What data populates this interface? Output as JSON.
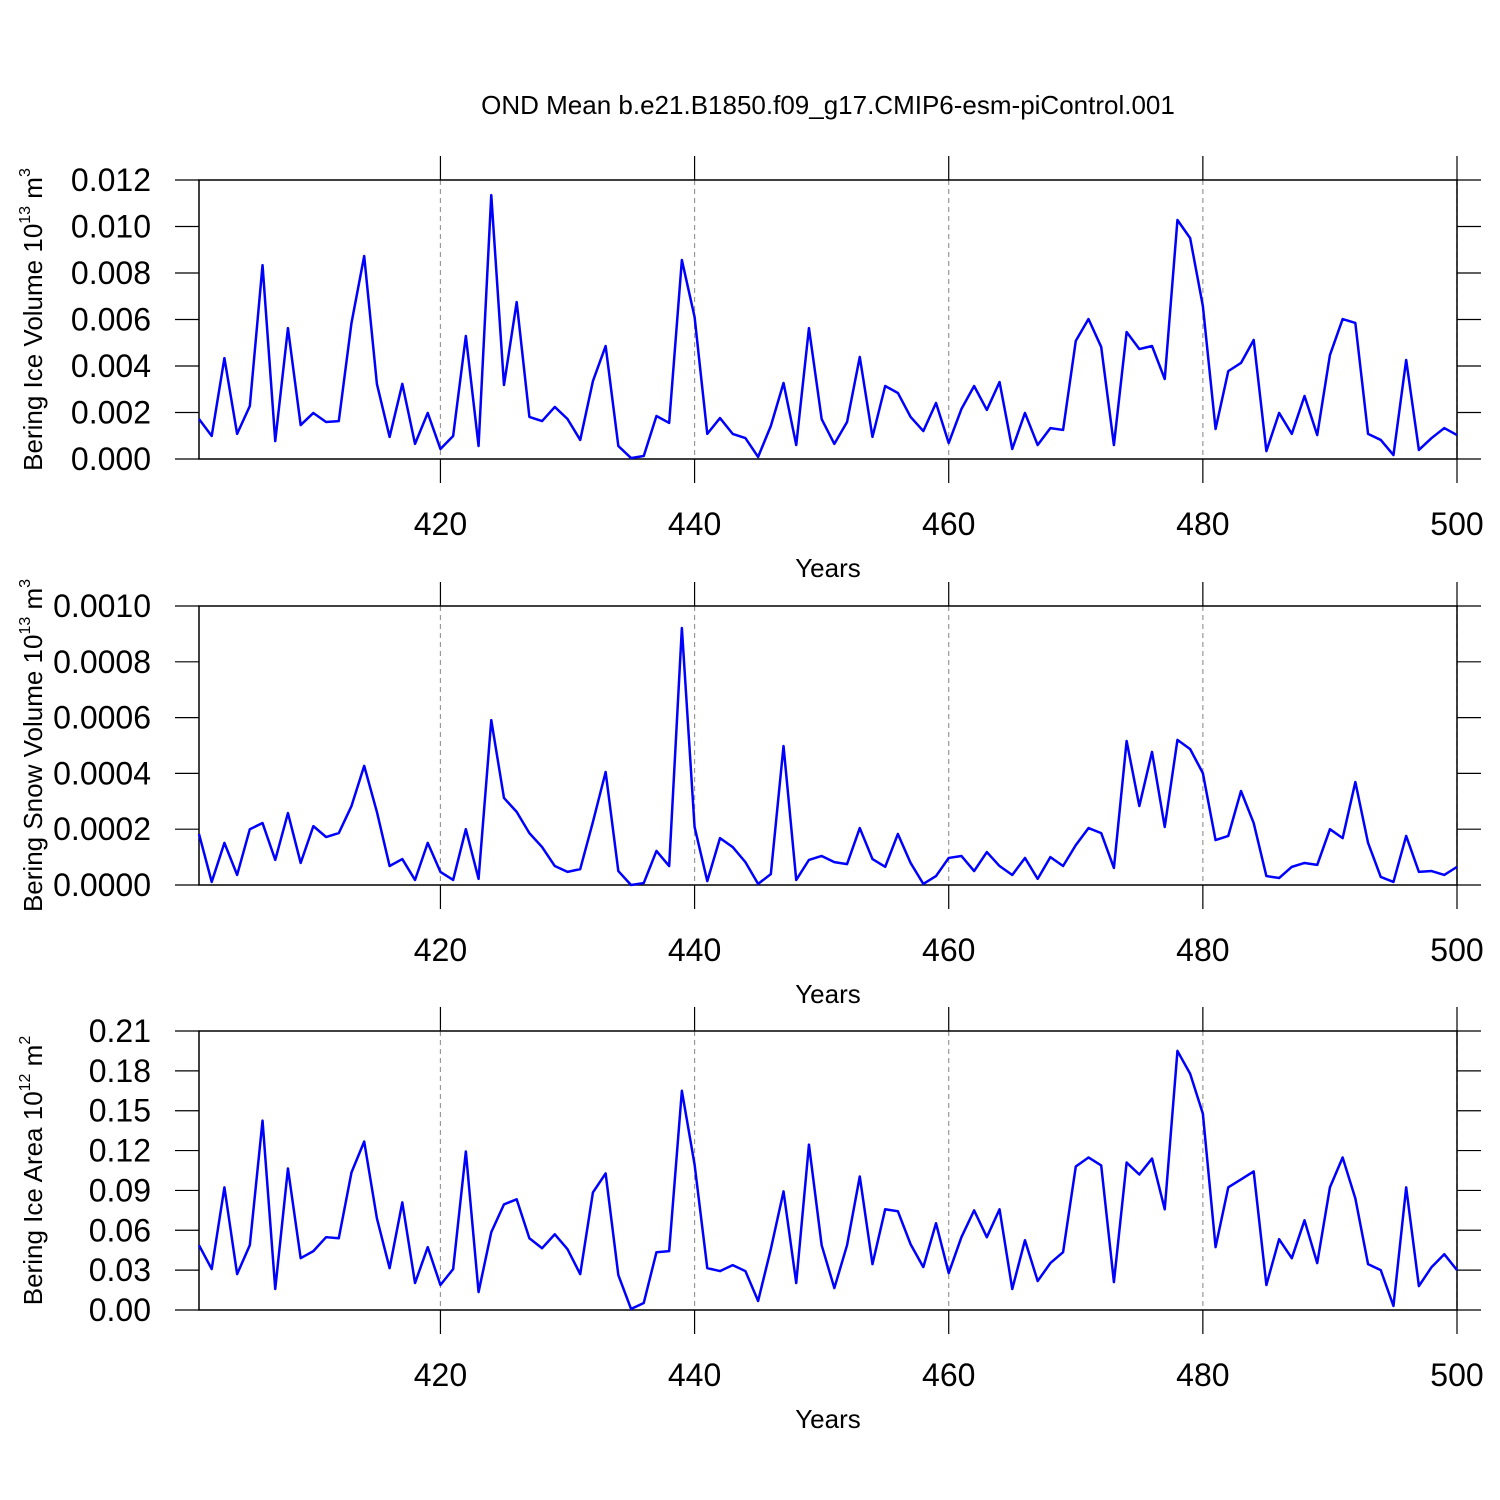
{
  "chart_data": [
    {
      "type": "line",
      "title": "OND Mean b.e21.B1850.f09_g17.CMIP6-esm-piControl.001",
      "ylabel": {
        "text": "Bering Ice Volume 10",
        "exp": "13",
        "unit": " m",
        "unit_exp": "3"
      },
      "xlabel": "Years",
      "x": [
        401,
        402,
        403,
        404,
        405,
        406,
        407,
        408,
        409,
        410,
        411,
        412,
        413,
        414,
        415,
        416,
        417,
        418,
        419,
        420,
        421,
        422,
        423,
        424,
        425,
        426,
        427,
        428,
        429,
        430,
        431,
        432,
        433,
        434,
        435,
        436,
        437,
        438,
        439,
        440,
        441,
        442,
        443,
        444,
        445,
        446,
        447,
        448,
        449,
        450,
        451,
        452,
        453,
        454,
        455,
        456,
        457,
        458,
        459,
        460,
        461,
        462,
        463,
        464,
        465,
        466,
        467,
        468,
        469,
        470,
        471,
        472,
        473,
        474,
        475,
        476,
        477,
        478,
        479,
        480,
        481,
        482,
        483,
        484,
        485,
        486,
        487,
        488,
        489,
        490,
        491,
        492,
        493,
        494,
        495,
        496,
        497,
        498,
        499,
        500
      ],
      "series": [
        {
          "color": "#0000ff",
          "values": [
            0.00172,
            0.00099,
            0.00434,
            0.00108,
            0.00228,
            0.00834,
            0.00077,
            0.00563,
            0.00146,
            0.00198,
            0.00159,
            0.00163,
            0.00585,
            0.00873,
            0.00323,
            0.00095,
            0.00323,
            0.00065,
            0.00198,
            0.00043,
            0.00099,
            0.00529,
            0.00056,
            0.01135,
            0.00318,
            0.00675,
            0.00181,
            0.00163,
            0.00224,
            0.00172,
            0.00082,
            0.00335,
            0.00486,
            0.00056,
            4e-05,
            0.00013,
            0.00185,
            0.00155,
            0.00856,
            0.00611,
            0.00108,
            0.00176,
            0.00108,
            0.0009,
            9e-05,
            0.00142,
            0.00327,
            0.0006,
            0.00563,
            0.00172,
            0.00065,
            0.00159,
            0.00439,
            0.00095,
            0.00314,
            0.00284,
            0.00181,
            0.0012,
            0.00241,
            0.00069,
            0.00215,
            0.00314,
            0.00211,
            0.00331,
            0.00043,
            0.00198,
            0.0006,
            0.00133,
            0.00125,
            0.00508,
            0.00602,
            0.00482,
            0.0006,
            0.00546,
            0.00473,
            0.00486,
            0.00344,
            0.01028,
            0.0095,
            0.00658,
            0.00129,
            0.00378,
            0.00413,
            0.00512,
            0.00034,
            0.00198,
            0.00108,
            0.00271,
            0.00103,
            0.00447,
            0.00602,
            0.00585,
            0.00108,
            0.00082,
            0.00017,
            0.00426,
            0.00039,
            0.0009,
            0.00133,
            0.00103
          ]
        }
      ],
      "xlim": [
        401,
        500
      ],
      "xticks": [
        420,
        440,
        460,
        480,
        500
      ],
      "ylim": [
        0,
        0.012
      ],
      "yticks": [
        {
          "value": 0,
          "label": "0.000"
        },
        {
          "value": 0.002,
          "label": "0.002"
        },
        {
          "value": 0.004,
          "label": "0.004"
        },
        {
          "value": 0.006,
          "label": "0.006"
        },
        {
          "value": 0.008,
          "label": "0.008"
        },
        {
          "value": 0.01,
          "label": "0.010"
        },
        {
          "value": 0.012,
          "label": "0.012"
        }
      ],
      "grid": "x"
    },
    {
      "type": "line",
      "ylabel": {
        "text": "Bering Snow Volume 10",
        "exp": "13",
        "unit": " m",
        "unit_exp": "3"
      },
      "xlabel": "Years",
      "x": [
        401,
        402,
        403,
        404,
        405,
        406,
        407,
        408,
        409,
        410,
        411,
        412,
        413,
        414,
        415,
        416,
        417,
        418,
        419,
        420,
        421,
        422,
        423,
        424,
        425,
        426,
        427,
        428,
        429,
        430,
        431,
        432,
        433,
        434,
        435,
        436,
        437,
        438,
        439,
        440,
        441,
        442,
        443,
        444,
        445,
        446,
        447,
        448,
        449,
        450,
        451,
        452,
        453,
        454,
        455,
        456,
        457,
        458,
        459,
        460,
        461,
        462,
        463,
        464,
        465,
        466,
        467,
        468,
        469,
        470,
        471,
        472,
        473,
        474,
        475,
        476,
        477,
        478,
        479,
        480,
        481,
        482,
        483,
        484,
        485,
        486,
        487,
        488,
        489,
        490,
        491,
        492,
        493,
        494,
        495,
        496,
        497,
        498,
        499,
        500
      ],
      "series": [
        {
          "color": "#0000ff",
          "values": [
            0.000183,
            1.1e-05,
            0.000151,
            3.6e-05,
            0.0002,
            0.000222,
            9e-05,
            0.000258,
            7.9e-05,
            0.000211,
            0.000172,
            0.000186,
            0.000283,
            0.000427,
            0.000262,
            6.8e-05,
            9.3e-05,
            1.8e-05,
            0.000151,
            4.7e-05,
            1.8e-05,
            0.0002,
            2.2e-05,
            0.000591,
            0.000312,
            0.000262,
            0.000186,
            0.000136,
            6.8e-05,
            4.7e-05,
            5.7e-05,
            0.000226,
            0.000405,
            5e-05,
            0,
            7e-06,
            0.000122,
            6.8e-05,
            0.000921,
            0.000208,
            1.4e-05,
            0.000168,
            0.000136,
            8.2e-05,
            4e-06,
            3.9e-05,
            0.000498,
            1.8e-05,
            9e-05,
            0.000104,
            8.2e-05,
            7.5e-05,
            0.000204,
            9.3e-05,
            6.5e-05,
            0.000183,
            7.9e-05,
            4e-06,
            3.2e-05,
            9.7e-05,
            0.000104,
            5e-05,
            0.000118,
            6.8e-05,
            3.6e-05,
            9.7e-05,
            2.2e-05,
            0.0001,
            6.8e-05,
            0.000143,
            0.000204,
            0.000186,
            6.1e-05,
            0.000516,
            0.000283,
            0.000477,
            0.000208,
            0.00052,
            0.000487,
            0.000401,
            0.000161,
            0.000176,
            0.000337,
            0.000222,
            3.2e-05,
            2.5e-05,
            6.5e-05,
            7.9e-05,
            7.2e-05,
            0.0002,
            0.000168,
            0.000369,
            0.000151,
            2.9e-05,
            1.1e-05,
            0.000176,
            4.7e-05,
            5e-05,
            3.6e-05,
            6.5e-05
          ]
        }
      ],
      "xlim": [
        401,
        500
      ],
      "xticks": [
        420,
        440,
        460,
        480,
        500
      ],
      "ylim": [
        0,
        0.001
      ],
      "yticks": [
        {
          "value": 0,
          "label": "0.0000"
        },
        {
          "value": 0.0002,
          "label": "0.0002"
        },
        {
          "value": 0.0004,
          "label": "0.0004"
        },
        {
          "value": 0.0006,
          "label": "0.0006"
        },
        {
          "value": 0.0008,
          "label": "0.0008"
        },
        {
          "value": 0.001,
          "label": "0.0010"
        }
      ],
      "grid": "x"
    },
    {
      "type": "line",
      "ylabel": {
        "text": "Bering Ice Area 10",
        "exp": "12",
        "unit": " m",
        "unit_exp": "2"
      },
      "xlabel": "Years",
      "x": [
        401,
        402,
        403,
        404,
        405,
        406,
        407,
        408,
        409,
        410,
        411,
        412,
        413,
        414,
        415,
        416,
        417,
        418,
        419,
        420,
        421,
        422,
        423,
        424,
        425,
        426,
        427,
        428,
        429,
        430,
        431,
        432,
        433,
        434,
        435,
        436,
        437,
        438,
        439,
        440,
        441,
        442,
        443,
        444,
        445,
        446,
        447,
        448,
        449,
        450,
        451,
        452,
        453,
        454,
        455,
        456,
        457,
        458,
        459,
        460,
        461,
        462,
        463,
        464,
        465,
        466,
        467,
        468,
        469,
        470,
        471,
        472,
        473,
        474,
        475,
        476,
        477,
        478,
        479,
        480,
        481,
        482,
        483,
        484,
        485,
        486,
        487,
        488,
        489,
        490,
        491,
        492,
        493,
        494,
        495,
        496,
        497,
        498,
        499,
        500
      ],
      "series": [
        {
          "color": "#0000ff",
          "values": [
            0.0488,
            0.0308,
            0.0923,
            0.027,
            0.0488,
            0.1425,
            0.0158,
            0.1065,
            0.039,
            0.0443,
            0.0548,
            0.054,
            0.1035,
            0.1268,
            0.069,
            0.0315,
            0.081,
            0.0203,
            0.0473,
            0.0188,
            0.0308,
            0.1193,
            0.0135,
            0.0585,
            0.0795,
            0.0833,
            0.054,
            0.0465,
            0.057,
            0.0458,
            0.027,
            0.0885,
            0.1028,
            0.0263,
            0.0008,
            0.0053,
            0.0435,
            0.0443,
            0.165,
            0.1095,
            0.0315,
            0.0293,
            0.0338,
            0.0293,
            0.0068,
            0.0458,
            0.0893,
            0.0203,
            0.1245,
            0.0488,
            0.0165,
            0.0488,
            0.1005,
            0.0345,
            0.0758,
            0.0743,
            0.0495,
            0.0323,
            0.0653,
            0.0278,
            0.0548,
            0.075,
            0.0548,
            0.0758,
            0.0158,
            0.0525,
            0.0218,
            0.0353,
            0.0435,
            0.108,
            0.1148,
            0.1088,
            0.021,
            0.111,
            0.102,
            0.114,
            0.0758,
            0.195,
            0.1778,
            0.1478,
            0.0473,
            0.0923,
            0.0983,
            0.1043,
            0.0188,
            0.0533,
            0.039,
            0.0675,
            0.0353,
            0.0923,
            0.1148,
            0.084,
            0.0345,
            0.03,
            0.003,
            0.0923,
            0.018,
            0.0323,
            0.042,
            0.03
          ]
        }
      ],
      "xlim": [
        401,
        500
      ],
      "xticks": [
        420,
        440,
        460,
        480,
        500
      ],
      "ylim": [
        0,
        0.21
      ],
      "yticks": [
        {
          "value": 0,
          "label": "0.00"
        },
        {
          "value": 0.03,
          "label": "0.03"
        },
        {
          "value": 0.06,
          "label": "0.06"
        },
        {
          "value": 0.09,
          "label": "0.09"
        },
        {
          "value": 0.12,
          "label": "0.12"
        },
        {
          "value": 0.15,
          "label": "0.15"
        },
        {
          "value": 0.18,
          "label": "0.18"
        },
        {
          "value": 0.21,
          "label": "0.21"
        }
      ],
      "grid": "x"
    }
  ]
}
